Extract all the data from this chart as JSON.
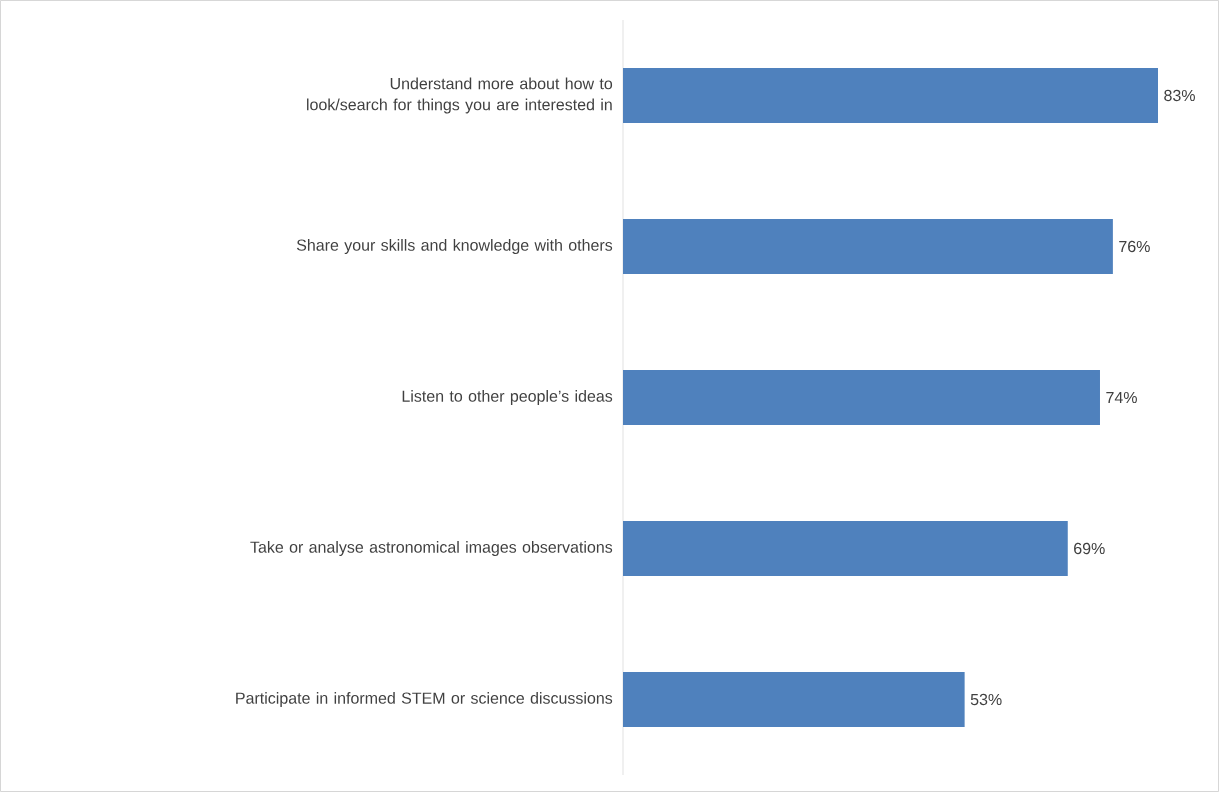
{
  "chart_data": {
    "type": "bar",
    "orientation": "horizontal",
    "categories": [
      "Understand more about how to look/search for things you are interested in",
      "Share your skills and knowledge with others",
      "Listen to other people’s ideas",
      "Take or analyse astronomical images observations",
      "Participate in informed STEM or science discussions"
    ],
    "values": [
      83,
      76,
      74,
      69,
      53
    ],
    "value_labels": [
      "83%",
      "76%",
      "74%",
      "69%",
      "53%"
    ],
    "color": "#4f81bd"
  }
}
